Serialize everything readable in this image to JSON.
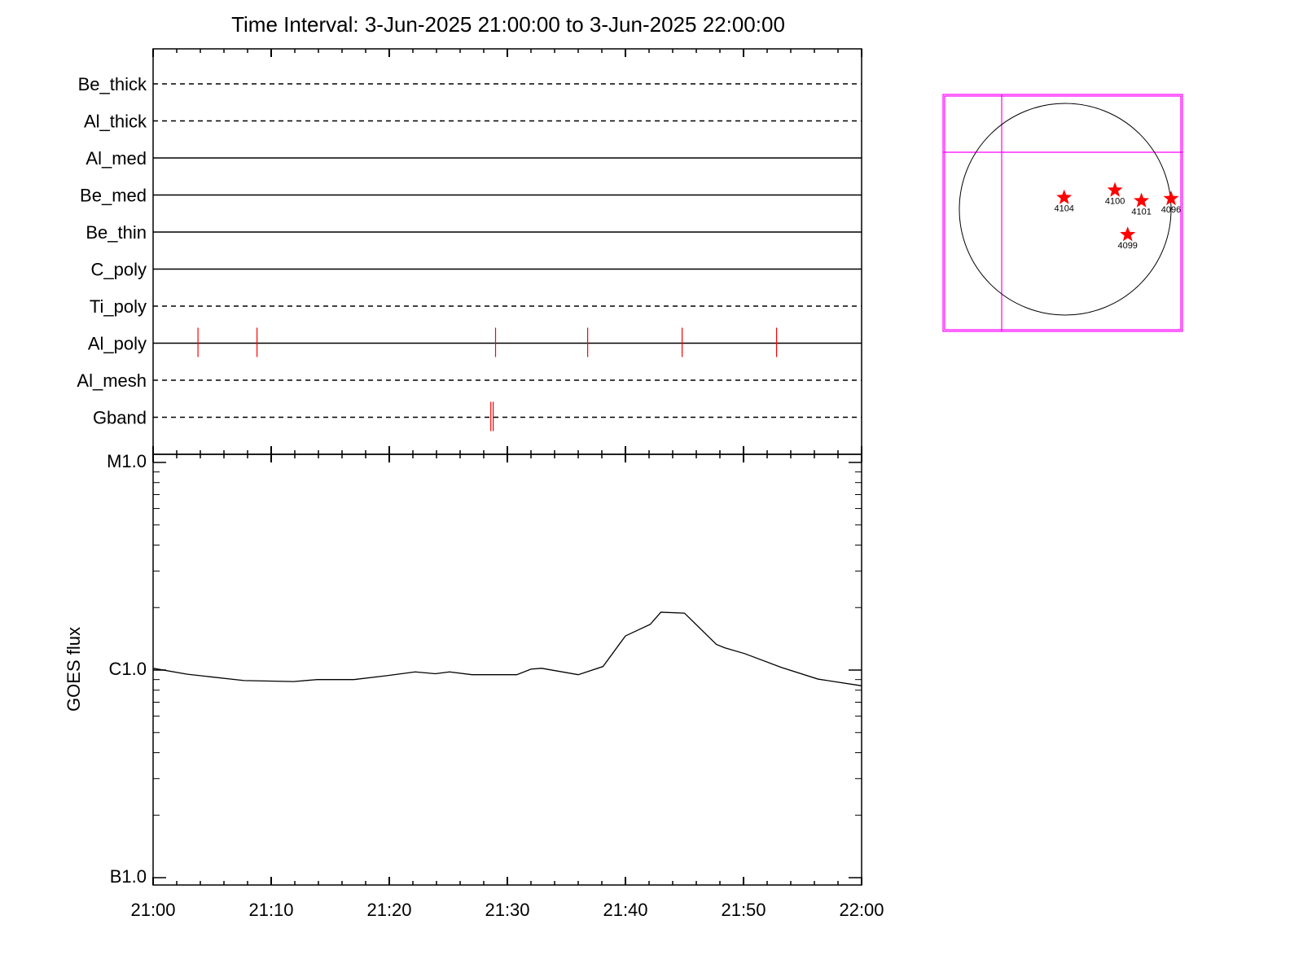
{
  "chart_data": [
    {
      "type": "timeline",
      "title": "Time Interval:  3-Jun-2025 21:00:00 to  3-Jun-2025 22:00:00",
      "categories": [
        "Be_thick",
        "Al_thick",
        "Al_med",
        "Be_med",
        "Be_thin",
        "C_poly",
        "Ti_poly",
        "Al_poly",
        "Al_mesh",
        "Gband"
      ],
      "line_styles": [
        "dashed",
        "dashed",
        "solid",
        "solid",
        "solid",
        "solid",
        "dashed",
        "solid",
        "dashed",
        "dashed"
      ],
      "events": [
        [],
        [],
        [],
        [],
        [],
        [],
        [],
        [
          3.8,
          8.8,
          29.0,
          36.8,
          44.8,
          52.8
        ],
        [],
        [
          28.6,
          28.8
        ]
      ],
      "event_color": "#ff0000"
    },
    {
      "type": "line",
      "ylabel": "GOES flux",
      "x": [
        0,
        2.9,
        7.7,
        11.9,
        13.9,
        17.0,
        19.8,
        22.2,
        23.9,
        25.1,
        27.0,
        30.8,
        32.0,
        32.9,
        36.0,
        38.1,
        40.0,
        42.1,
        43.0,
        45.0,
        47.7,
        48.4,
        50.1,
        53.2,
        56.3,
        60
      ],
      "values": [
        1.02e-06,
        9.55e-07,
        8.9e-07,
        8.8e-07,
        9e-07,
        9e-07,
        9.4e-07,
        9.8e-07,
        9.6e-07,
        9.8e-07,
        9.5e-07,
        9.5e-07,
        1.01e-06,
        1.02e-06,
        9.5e-07,
        1.04e-06,
        1.46e-06,
        1.66e-06,
        1.9e-06,
        1.88e-06,
        1.33e-06,
        1.28e-06,
        1.2e-06,
        1.03e-06,
        9.05e-07,
        8.4e-07
      ],
      "color": "#000000",
      "log_y": true,
      "ylim": [
        1e-07,
        1e-05
      ],
      "yticks": [
        {
          "value": 1e-07,
          "label": "B1.0"
        },
        {
          "value": 1e-06,
          "label": "C1.0"
        },
        {
          "value": 1e-05,
          "label": "M1.0"
        }
      ],
      "yminorticks": [
        2e-07,
        3e-07,
        4e-07,
        5e-07,
        6e-07,
        7e-07,
        8e-07,
        9e-07,
        2e-06,
        3e-06,
        4e-06,
        5e-06,
        6e-06,
        7e-06,
        8e-06,
        9e-06
      ],
      "xlim": [
        0,
        60
      ],
      "xticks": [
        {
          "value": 0,
          "label": "21:00"
        },
        {
          "value": 10,
          "label": "21:10"
        },
        {
          "value": 20,
          "label": "21:20"
        },
        {
          "value": 30,
          "label": "21:30"
        },
        {
          "value": 40,
          "label": "21:40"
        },
        {
          "value": 50,
          "label": "21:50"
        },
        {
          "value": 60,
          "label": "22:00"
        }
      ],
      "xminorticks": [
        2,
        4,
        6,
        8,
        12,
        14,
        16,
        18,
        22,
        24,
        26,
        28,
        32,
        34,
        36,
        38,
        42,
        44,
        46,
        48,
        52,
        54,
        56,
        58
      ]
    },
    {
      "type": "disk",
      "points": [
        {
          "label": "4104",
          "x": -0.01,
          "y": 0.11
        },
        {
          "label": "4100",
          "x": 0.47,
          "y": 0.18
        },
        {
          "label": "4101",
          "x": 0.72,
          "y": 0.08
        },
        {
          "label": "4096",
          "x": 1.0,
          "y": 0.1
        },
        {
          "label": "4099",
          "x": 0.59,
          "y": -0.24
        }
      ],
      "color": "#ff0000",
      "box_color": "#ff00ff"
    }
  ]
}
